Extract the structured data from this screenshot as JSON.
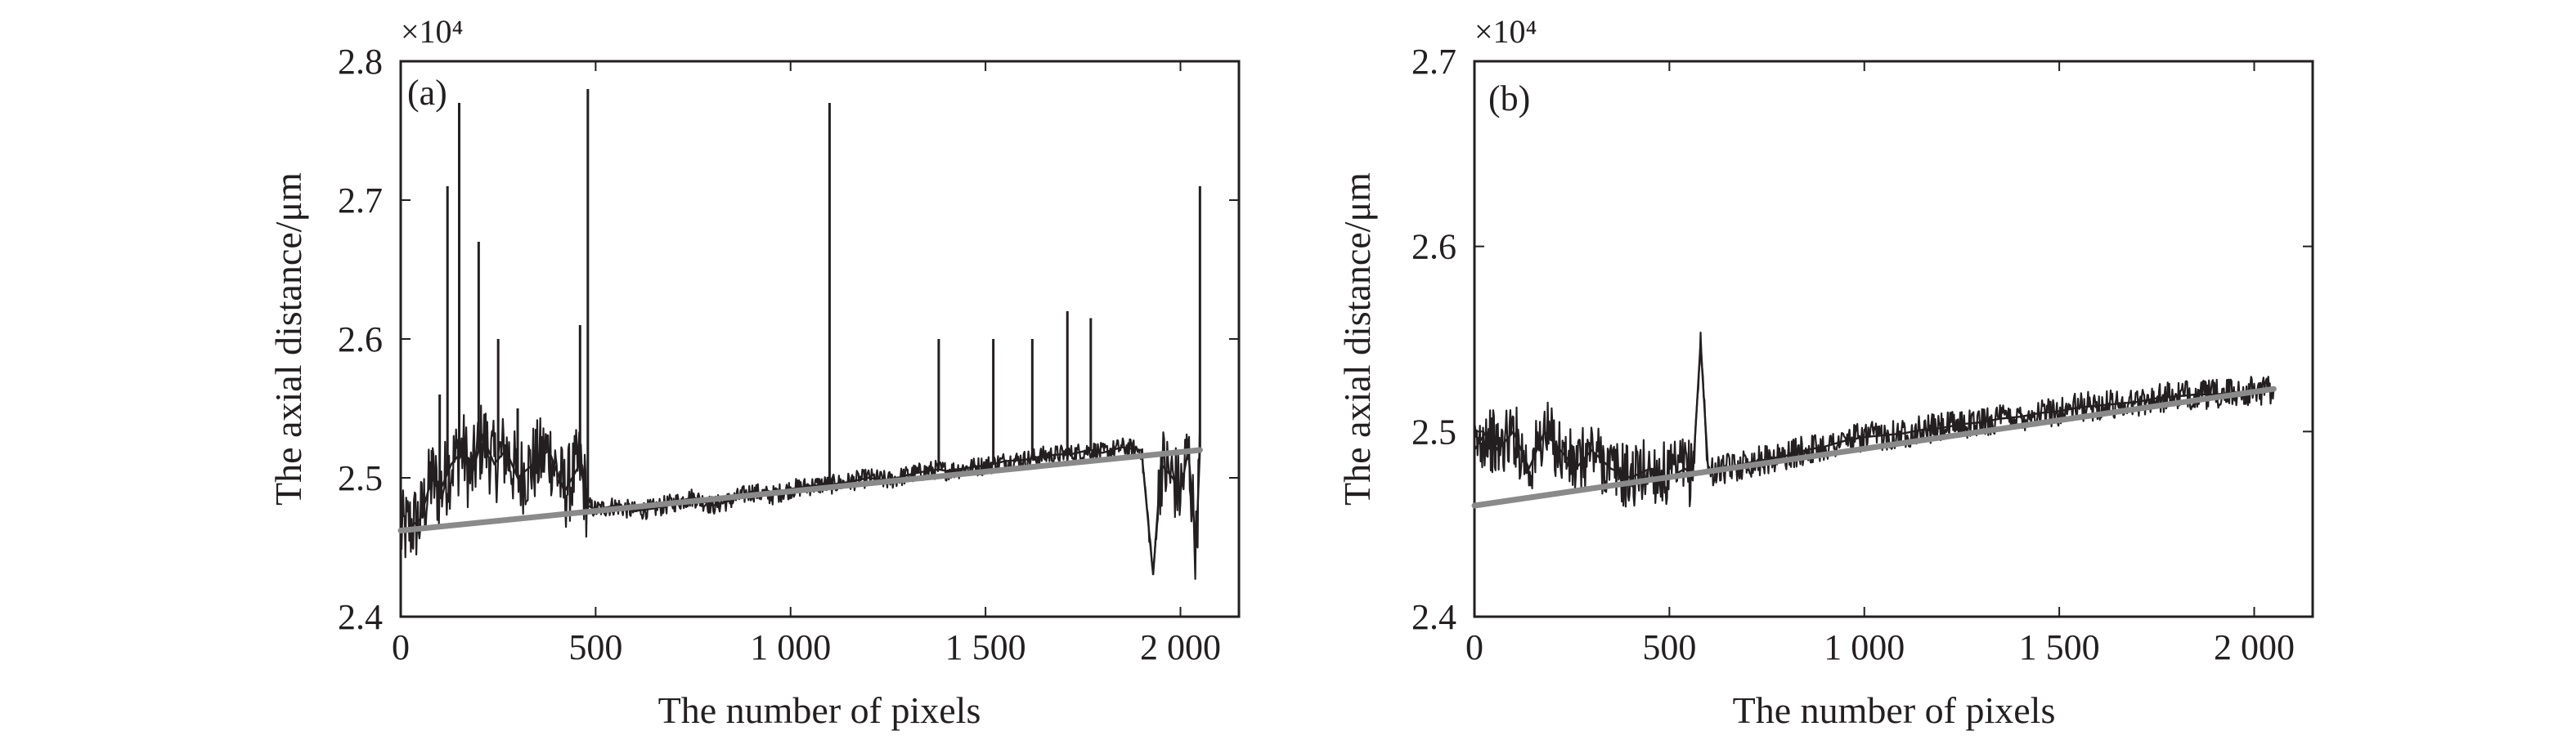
{
  "figure": {
    "panel_a_label": "(a)",
    "panel_b_label": "(b)"
  },
  "chart_data": [
    {
      "type": "line",
      "panel": "(a)",
      "title": "",
      "xlabel": "The number of pixels",
      "ylabel": "The axial distance/μm",
      "y_multiplier": "×10⁴",
      "xlim": [
        0,
        2150
      ],
      "ylim": [
        2.4,
        2.8
      ],
      "xticks": [
        0,
        500,
        1000,
        1500,
        2000
      ],
      "xtick_labels": [
        "0",
        "500",
        "1 000",
        "1 500",
        "2 000"
      ],
      "yticks": [
        2.4,
        2.5,
        2.6,
        2.7,
        2.8
      ],
      "ytick_labels": [
        "2.4",
        "2.5",
        "2.6",
        "2.7",
        "2.8"
      ],
      "grid": false,
      "line_colors": {
        "measured": "#231f20",
        "fit": "#8a8a8a"
      },
      "series": [
        {
          "role": "measured",
          "x": [
            0,
            50,
            80,
            100,
            130,
            160,
            180,
            210,
            240,
            270,
            300,
            340,
            380,
            420,
            460,
            480,
            500,
            550,
            600,
            650,
            700,
            750,
            800,
            850,
            900,
            950,
            1000,
            1050,
            1080,
            1100,
            1150,
            1200,
            1250,
            1300,
            1350,
            1380,
            1400,
            1450,
            1500,
            1520,
            1550,
            1600,
            1620,
            1650,
            1700,
            1720,
            1750,
            1770,
            1800,
            1850,
            1900,
            1930,
            1950,
            1980,
            2000,
            2020,
            2040,
            2050
          ],
          "y": [
            2.46,
            2.47,
            2.5,
            2.49,
            2.51,
            2.52,
            2.5,
            2.53,
            2.51,
            2.52,
            2.5,
            2.51,
            2.52,
            2.49,
            2.51,
            2.48,
            2.477,
            2.48,
            2.476,
            2.478,
            2.482,
            2.486,
            2.48,
            2.484,
            2.49,
            2.487,
            2.492,
            2.494,
            2.495,
            2.495,
            2.497,
            2.5,
            2.498,
            2.502,
            2.505,
            2.506,
            2.505,
            2.507,
            2.509,
            2.51,
            2.512,
            2.513,
            2.514,
            2.516,
            2.517,
            2.517,
            2.519,
            2.52,
            2.518,
            2.522,
            2.52,
            2.43,
            2.51,
            2.5,
            2.49,
            2.52,
            2.45,
            2.52
          ]
        },
        {
          "role": "spikes",
          "x": [
            80,
            100,
            120,
            150,
            200,
            250,
            300,
            460,
            480,
            1100,
            1380,
            1520,
            1620,
            1710,
            1770,
            2050
          ],
          "y": [
            2.52,
            2.56,
            2.71,
            2.77,
            2.67,
            2.6,
            2.55,
            2.61,
            2.78,
            2.77,
            2.6,
            2.6,
            2.6,
            2.62,
            2.615,
            2.71
          ]
        },
        {
          "role": "fit",
          "x": [
            0,
            2050
          ],
          "y": [
            2.462,
            2.52
          ]
        }
      ]
    },
    {
      "type": "line",
      "panel": "(b)",
      "title": "",
      "xlabel": "The number of pixels",
      "ylabel": "The axial distance/μm",
      "y_multiplier": "×10⁴",
      "xlim": [
        0,
        2150
      ],
      "ylim": [
        2.4,
        2.7
      ],
      "xticks": [
        0,
        500,
        1000,
        1500,
        2000
      ],
      "xtick_labels": [
        "0",
        "500",
        "1 000",
        "1 500",
        "2 000"
      ],
      "yticks": [
        2.4,
        2.5,
        2.6,
        2.7
      ],
      "ytick_labels": [
        "2.4",
        "2.5",
        "2.6",
        "2.7"
      ],
      "grid": false,
      "line_colors": {
        "measured": "#231f20",
        "fit": "#8a8a8a"
      },
      "series": [
        {
          "role": "measured",
          "x": [
            0,
            30,
            60,
            100,
            140,
            180,
            220,
            260,
            300,
            350,
            400,
            450,
            500,
            540,
            560,
            580,
            600,
            650,
            700,
            750,
            800,
            850,
            900,
            950,
            1000,
            1050,
            1100,
            1150,
            1200,
            1250,
            1300,
            1350,
            1400,
            1450,
            1500,
            1550,
            1600,
            1650,
            1700,
            1750,
            1800,
            1850,
            1900,
            1950,
            2000,
            2050
          ],
          "y": [
            2.49,
            2.5,
            2.49,
            2.5,
            2.48,
            2.5,
            2.49,
            2.48,
            2.49,
            2.48,
            2.475,
            2.48,
            2.475,
            2.48,
            2.476,
            2.548,
            2.478,
            2.48,
            2.483,
            2.485,
            2.487,
            2.49,
            2.492,
            2.495,
            2.497,
            2.498,
            2.499,
            2.501,
            2.502,
            2.504,
            2.505,
            2.507,
            2.508,
            2.51,
            2.511,
            2.513,
            2.514,
            2.515,
            2.516,
            2.518,
            2.519,
            2.52,
            2.52,
            2.521,
            2.522,
            2.523
          ]
        },
        {
          "role": "fit",
          "x": [
            0,
            2050
          ],
          "y": [
            2.46,
            2.523
          ]
        }
      ]
    }
  ]
}
